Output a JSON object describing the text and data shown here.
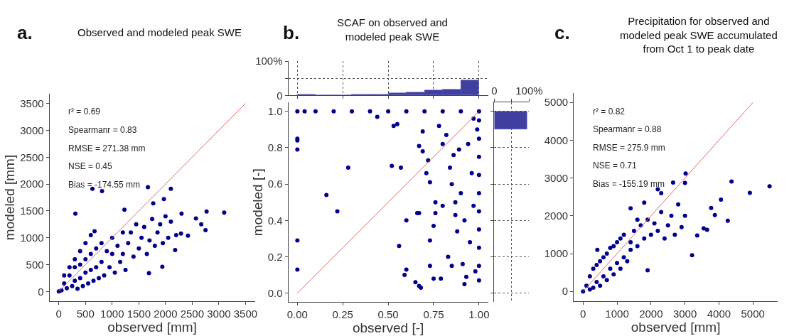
{
  "chart_data": [
    {
      "type": "scatter",
      "title": "Observed and modeled peak SWE",
      "xlabel": "observed [mm]",
      "ylabel": "modeled [mm]",
      "annotations": [
        "a.",
        "r² = 0.69",
        "Spearmanr = 0.83",
        "RMSE = 271.38 mm",
        "NSE = 0.45",
        "Bias = -174.55 mm"
      ],
      "xlim": [
        -175,
        3675
      ],
      "ylim": [
        -175,
        3675
      ],
      "xticks": [
        0,
        500,
        1000,
        1500,
        2000,
        2500,
        3000,
        3500
      ],
      "yticks": [
        0,
        500,
        1000,
        1500,
        2000,
        2500,
        3000,
        3500
      ],
      "series": [
        {
          "type": "scatter",
          "marker": "circle",
          "color": "#00008b",
          "x": [
            0,
            50,
            100,
            150,
            200,
            250,
            300,
            300,
            350,
            400,
            400,
            450,
            500,
            500,
            550,
            600,
            600,
            650,
            700,
            700,
            750,
            800,
            800,
            850,
            900,
            950,
            1000,
            1000,
            1050,
            1100,
            1150,
            1200,
            1200,
            1250,
            1300,
            1350,
            1400,
            1450,
            1500,
            1550,
            1600,
            1650,
            1700,
            1750,
            1800,
            1850,
            1900,
            1950,
            2000,
            2050,
            2100,
            2200,
            2300,
            100,
            200,
            300,
            400,
            500,
            600,
            310,
            630,
            810,
            1670,
            2100,
            1970,
            1770,
            2770,
            3100,
            2570,
            2670,
            2750,
            2290,
            2420,
            2180,
            1940,
            1690,
            670,
            1230
          ],
          "values": [
            0,
            20,
            150,
            60,
            300,
            100,
            450,
            200,
            50,
            500,
            250,
            100,
            600,
            350,
            150,
            700,
            400,
            200,
            800,
            450,
            250,
            900,
            550,
            300,
            750,
            450,
            1000,
            700,
            350,
            850,
            550,
            1100,
            700,
            400,
            900,
            1100,
            650,
            1250,
            800,
            1000,
            1200,
            700,
            950,
            1350,
            850,
            1100,
            1250,
            900,
            1400,
            1000,
            1300,
            1050,
            1450,
            300,
            450,
            600,
            750,
            900,
            1050,
            1450,
            1910,
            1870,
            1940,
            1910,
            1720,
            1640,
            1490,
            1470,
            1360,
            1250,
            1140,
            1080,
            1040,
            770,
            460,
            340,
            1120,
            1520
          ]
        },
        {
          "type": "line",
          "color": "#e06666",
          "x": [
            0,
            3500
          ],
          "values": [
            0,
            3500
          ]
        }
      ]
    },
    {
      "type": "histogram",
      "title": "SCAF on observed and modeled peak SWE",
      "annotations": [
        "b."
      ],
      "bins": [
        0,
        0.1,
        0.2,
        0.3,
        0.4,
        0.5,
        0.6,
        0.7,
        0.8,
        0.9,
        1.0
      ],
      "values": [
        2,
        0,
        0,
        2,
        3,
        6,
        9,
        15,
        18,
        44
      ],
      "color": "#4040a0",
      "xlim": [
        -0.05,
        1.05
      ],
      "xticks": [
        {
          "value": 0,
          "label": null
        },
        {
          "value": 0.25,
          "label": null
        },
        {
          "value": 0.5,
          "label": null
        },
        {
          "value": 0.75,
          "label": null
        },
        {
          "value": 1,
          "label": null
        }
      ],
      "ylim": [
        0,
        100
      ],
      "yticks": [
        0,
        {
          "value": 50,
          "label": null
        },
        {
          "value": 100,
          "label": "100%"
        }
      ],
      "grid": true,
      "tick_labels": "y"
    },
    {
      "type": "scatter",
      "xlabel": "observed [-]",
      "ylabel": "modeled [-]",
      "xlim": [
        -0.05,
        1.05
      ],
      "ylim": [
        -0.05,
        1.05
      ],
      "xticks": [
        {
          "value": 0,
          "label": "0.00"
        },
        0.25,
        {
          "value": 0.5,
          "label": "0.50"
        },
        0.75,
        {
          "value": 1,
          "label": "1.00"
        }
      ],
      "yticks": [
        {
          "value": 0,
          "label": "0.0"
        },
        0.2,
        0.4,
        0.6,
        0.8,
        {
          "value": 1,
          "label": "1.0"
        }
      ],
      "series": [
        {
          "type": "scatter",
          "marker": "circle",
          "color": "#00008b",
          "x": [
            0,
            0.04,
            0.1,
            0.2,
            0.3,
            0.4,
            0.5,
            0.6,
            0.7,
            0.8,
            0.9,
            1,
            0,
            0,
            0,
            0,
            0,
            0.16,
            0.22,
            0.28,
            0.44,
            0.52,
            0.53,
            0.55,
            0.57,
            0.56,
            0.6,
            0.6,
            0.59,
            0.65,
            0.67,
            0.68,
            0.66,
            0.67,
            0.67,
            0.69,
            0.69,
            0.71,
            0.72,
            0.73,
            0.73,
            0.73,
            0.75,
            0.76,
            0.76,
            0.78,
            0.8,
            0.8,
            0.82,
            0.84,
            0.83,
            0.85,
            0.86,
            0.87,
            0.87,
            0.88,
            0.89,
            0.9,
            0.91,
            0.92,
            0.92,
            0.94,
            0.95,
            0.96,
            0.97,
            0.98,
            0.97,
            0.99,
            1,
            1,
            1,
            1,
            1,
            1,
            1,
            1,
            1,
            1,
            0.93,
            0.85,
            0.79,
            0.75
          ],
          "values": [
            1,
            1,
            1,
            1,
            1,
            1,
            1,
            1,
            1,
            1,
            1,
            1,
            0.85,
            0.84,
            0.79,
            0.29,
            0.13,
            0.54,
            0.45,
            0.69,
            0.97,
            0.7,
            0.92,
            0.93,
            0.69,
            0.26,
            0.4,
            0.13,
            0.1,
            0.06,
            0.04,
            0.03,
            0.44,
            0.44,
            0.81,
            0.78,
            0.89,
            0.66,
            0.73,
            0.61,
            0.29,
            0.15,
            0.37,
            0.5,
            0.44,
            0.92,
            0.48,
            0.82,
            0.87,
            0.69,
            0.2,
            0.6,
            0.76,
            0.5,
            0.43,
            0.34,
            0.79,
            0.55,
            0.16,
            0.05,
            0.4,
            0.82,
            0.28,
            0.66,
            0.48,
            0.12,
            0.96,
            0.9,
            0.07,
            0.15,
            0.25,
            0.35,
            0.45,
            0.55,
            0.65,
            0.75,
            0.85,
            0.95,
            0.09,
            0.15,
            0.08,
            0.08
          ]
        },
        {
          "type": "line",
          "color": "#e06666",
          "x": [
            0,
            1
          ],
          "values": [
            0,
            1
          ]
        }
      ]
    },
    {
      "type": "histogram",
      "orientation": "horizontal",
      "bins": [
        0.9,
        1.0
      ],
      "values": [
        93
      ],
      "color": "#4040a0",
      "xlim": [
        0,
        100
      ],
      "xticks": [
        0,
        {
          "value": 50,
          "label": null
        },
        {
          "value": 100,
          "label": "100%"
        }
      ],
      "ylim": [
        -0.05,
        1.05
      ],
      "yticks": [
        {
          "value": 0,
          "label": null
        },
        {
          "value": 0.2,
          "label": null
        },
        {
          "value": 0.4,
          "label": null
        },
        {
          "value": 0.6,
          "label": null
        },
        {
          "value": 0.8,
          "label": null
        },
        {
          "value": 1,
          "label": null
        }
      ],
      "grid": true,
      "tick_labels": "x"
    },
    {
      "type": "scatter",
      "title": "Precipitation for observed and modeled peak SWE accumulated from Oct 1 to peak date",
      "xlabel": "observed [mm]",
      "annotations": [
        "c.",
        "r² = 0.82",
        "Spearmanr = 0.88",
        "RMSE = 275.9 mm",
        "NSE = 0.71",
        "Bias = -155.19 mm"
      ],
      "xlim": [
        -275,
        5730
      ],
      "ylim": [
        -250,
        5240
      ],
      "xticks": [
        0,
        1000,
        2000,
        3000,
        4000,
        5000
      ],
      "yticks": [
        0,
        1000,
        2000,
        3000,
        4000,
        5000
      ],
      "series": [
        {
          "type": "scatter",
          "marker": "circle",
          "color": "#00008b",
          "x": [
            0,
            100,
            200,
            200,
            300,
            300,
            400,
            400,
            500,
            500,
            600,
            600,
            700,
            700,
            800,
            800,
            900,
            900,
            1000,
            1000,
            1100,
            1100,
            1200,
            1200,
            1300,
            1400,
            1400,
            1500,
            1600,
            1700,
            1800,
            1900,
            2000,
            2100,
            2200,
            2300,
            2400,
            2500,
            2600,
            2700,
            2800,
            2900,
            3000,
            2200,
            2300,
            1800,
            1400,
            1600,
            4370,
            5490,
            4910,
            4060,
            4260,
            3880,
            3770,
            3210,
            3020,
            3000,
            2650,
            3550,
            3360,
            3650,
            1900,
            420
          ],
          "values": [
            0,
            150,
            50,
            400,
            100,
            600,
            250,
            700,
            150,
            800,
            400,
            900,
            300,
            1000,
            600,
            1150,
            450,
            1200,
            750,
            1300,
            600,
            1400,
            900,
            1500,
            800,
            1300,
            1100,
            1600,
            1200,
            1750,
            1400,
            1900,
            1500,
            1800,
            1600,
            2100,
            1400,
            1750,
            2000,
            1500,
            2300,
            1700,
            2000,
            2700,
            2600,
            2350,
            2200,
            1900,
            2910,
            2780,
            2610,
            2430,
            1870,
            2020,
            2210,
            960,
            3120,
            2870,
            2880,
            1670,
            1480,
            1630,
            560,
            1100
          ]
        },
        {
          "type": "line",
          "color": "#e06666",
          "x": [
            0,
            5000
          ],
          "values": [
            0,
            5000
          ]
        }
      ]
    }
  ]
}
